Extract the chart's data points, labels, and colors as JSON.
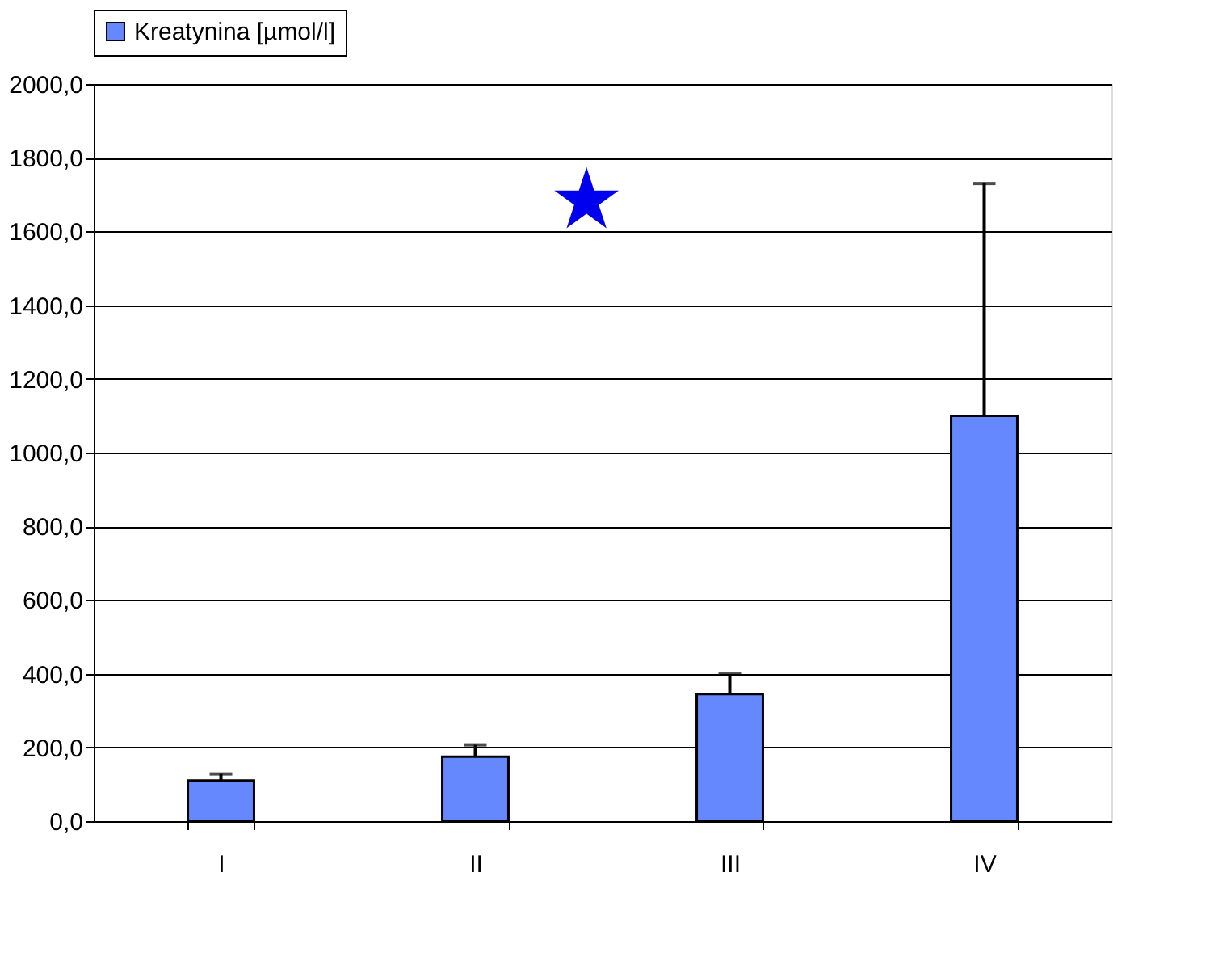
{
  "chart_data": {
    "type": "bar",
    "categories": [
      "I",
      "II",
      "III",
      "IV"
    ],
    "series": [
      {
        "name": "Kreatynina [µmol/l]",
        "color": "#6688ff",
        "values": [
          110,
          175,
          345,
          1100
        ],
        "errors": [
          [
            110,
            128
          ],
          [
            175,
            207
          ],
          [
            345,
            399
          ],
          [
            1100,
            1730
          ]
        ]
      }
    ],
    "ylim": [
      0,
      2000
    ],
    "yticks": [
      {
        "value": 0,
        "label": "0,0"
      },
      {
        "value": 200,
        "label": "200,0"
      },
      {
        "value": 400,
        "label": "400,0"
      },
      {
        "value": 600,
        "label": "600,0"
      },
      {
        "value": 800,
        "label": "800,0"
      },
      {
        "value": 1000,
        "label": "1000,0"
      },
      {
        "value": 1200,
        "label": "1200,0"
      },
      {
        "value": 1400,
        "label": "1400,0"
      },
      {
        "value": 1600,
        "label": "1600,0"
      },
      {
        "value": 1800,
        "label": "1800,0"
      },
      {
        "value": 2000,
        "label": "2000,0"
      }
    ],
    "grid": "y",
    "legend": "top",
    "annotations": [
      "★"
    ]
  }
}
